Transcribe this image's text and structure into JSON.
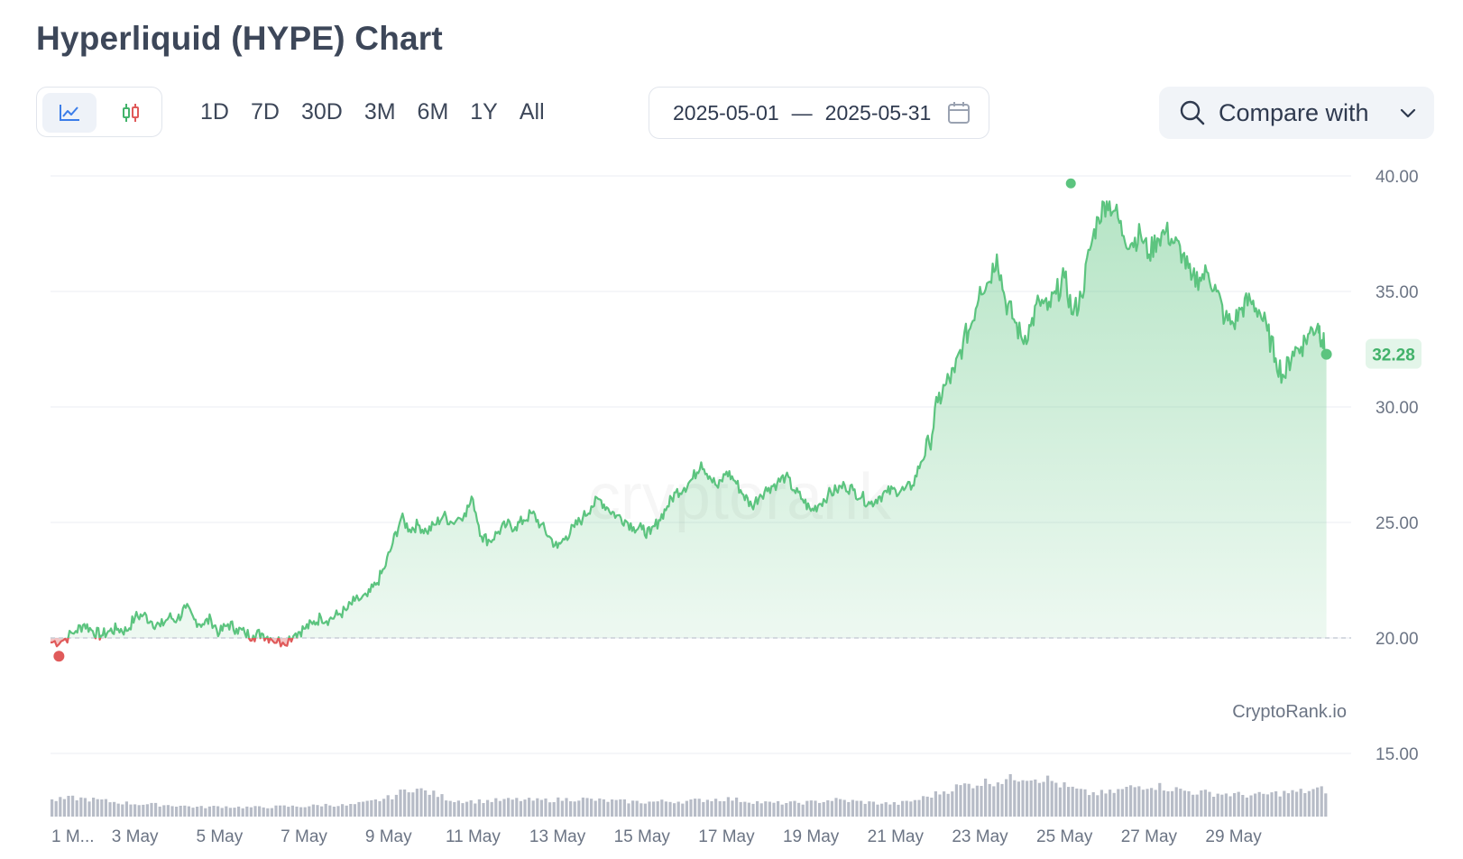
{
  "header": {
    "title": "Hyperliquid (HYPE) Chart"
  },
  "toolbar": {
    "chart_types": [
      {
        "icon": "line-chart-icon",
        "active": true
      },
      {
        "icon": "candlestick-icon",
        "active": false
      }
    ],
    "ranges": [
      "1D",
      "7D",
      "30D",
      "3M",
      "6M",
      "1Y",
      "All"
    ],
    "date_from": "2025-05-01",
    "date_separator": "—",
    "date_to": "2025-05-31",
    "calendar_icon": "calendar-icon",
    "compare_label": "Compare with",
    "compare_icon": "search-icon",
    "compare_chevron": "chevron-down-icon"
  },
  "colors": {
    "up_line": "#5cc47f",
    "down_line": "#e05a5a",
    "volume": "#b7bcc7",
    "grid": "#ebeef3",
    "current_badge_bg": "#e3f5e9",
    "current_badge_text": "#42b26a"
  },
  "chart_data": {
    "type": "area",
    "x_tick_labels": [
      "1 M...",
      "3 May",
      "5 May",
      "7 May",
      "9 May",
      "11 May",
      "13 May",
      "15 May",
      "17 May",
      "19 May",
      "21 May",
      "23 May",
      "25 May",
      "27 May",
      "29 May"
    ],
    "x_ticks_day": [
      1,
      3,
      5,
      7,
      9,
      11,
      13,
      15,
      17,
      19,
      21,
      23,
      25,
      27,
      29
    ],
    "y_ticks": [
      15,
      20,
      25,
      30,
      35,
      40
    ],
    "y_tick_labels": [
      "15.00",
      "20.00",
      "25.00",
      "30.00",
      "35.00",
      "40.00"
    ],
    "ylim": [
      15,
      40
    ],
    "xlim_day": [
      1,
      31
    ],
    "baseline": 20,
    "current_value_label": "32.28",
    "current_value": 32.28,
    "high_marker": {
      "day": 25.15,
      "value": 39.6
    },
    "low_marker": {
      "day": 1.2,
      "value": 19.6
    },
    "series": [
      {
        "points": [
          [
            1.0,
            19.8
          ],
          [
            1.3,
            19.9
          ],
          [
            1.6,
            20.3
          ],
          [
            1.8,
            20.6
          ],
          [
            2.0,
            20.3
          ],
          [
            2.2,
            20.1
          ],
          [
            2.4,
            20.3
          ],
          [
            2.6,
            20.4
          ],
          [
            2.8,
            20.3
          ],
          [
            3.0,
            20.9
          ],
          [
            3.2,
            21.0
          ],
          [
            3.4,
            20.7
          ],
          [
            3.6,
            20.5
          ],
          [
            3.8,
            20.9
          ],
          [
            4.0,
            20.8
          ],
          [
            4.2,
            21.3
          ],
          [
            4.4,
            20.8
          ],
          [
            4.6,
            20.6
          ],
          [
            4.8,
            20.8
          ],
          [
            5.0,
            20.2
          ],
          [
            5.2,
            20.6
          ],
          [
            5.4,
            20.4
          ],
          [
            5.6,
            20.2
          ],
          [
            5.8,
            20.1
          ],
          [
            6.0,
            20.2
          ],
          [
            6.2,
            20.0
          ],
          [
            6.5,
            19.8
          ],
          [
            6.8,
            20.2
          ],
          [
            7.0,
            20.4
          ],
          [
            7.2,
            20.6
          ],
          [
            7.4,
            20.9
          ],
          [
            7.6,
            20.8
          ],
          [
            7.8,
            21.0
          ],
          [
            8.0,
            21.2
          ],
          [
            8.2,
            21.6
          ],
          [
            8.5,
            21.8
          ],
          [
            8.7,
            22.3
          ],
          [
            8.9,
            23.0
          ],
          [
            9.1,
            24.1
          ],
          [
            9.3,
            25.2
          ],
          [
            9.5,
            24.7
          ],
          [
            9.7,
            24.9
          ],
          [
            9.9,
            24.6
          ],
          [
            10.1,
            24.9
          ],
          [
            10.3,
            25.3
          ],
          [
            10.5,
            25.0
          ],
          [
            10.8,
            25.4
          ],
          [
            11.0,
            26.0
          ],
          [
            11.2,
            24.4
          ],
          [
            11.4,
            24.2
          ],
          [
            11.6,
            24.6
          ],
          [
            11.8,
            24.9
          ],
          [
            12.0,
            24.8
          ],
          [
            12.2,
            25.1
          ],
          [
            12.4,
            25.4
          ],
          [
            12.6,
            24.9
          ],
          [
            12.8,
            24.4
          ],
          [
            13.0,
            23.9
          ],
          [
            13.2,
            24.4
          ],
          [
            13.4,
            24.8
          ],
          [
            13.6,
            25.2
          ],
          [
            13.8,
            25.7
          ],
          [
            14.0,
            26.0
          ],
          [
            14.2,
            25.6
          ],
          [
            14.4,
            25.3
          ],
          [
            14.6,
            25.1
          ],
          [
            14.8,
            24.8
          ],
          [
            15.0,
            24.7
          ],
          [
            15.2,
            24.5
          ],
          [
            15.4,
            25.1
          ],
          [
            15.6,
            25.7
          ],
          [
            15.8,
            26.3
          ],
          [
            16.0,
            26.5
          ],
          [
            16.2,
            26.9
          ],
          [
            16.4,
            27.6
          ],
          [
            16.6,
            27.0
          ],
          [
            16.8,
            26.5
          ],
          [
            17.0,
            27.2
          ],
          [
            17.2,
            26.8
          ],
          [
            17.4,
            26.2
          ],
          [
            17.6,
            25.7
          ],
          [
            17.8,
            26.2
          ],
          [
            18.0,
            26.5
          ],
          [
            18.2,
            26.7
          ],
          [
            18.4,
            27.0
          ],
          [
            18.6,
            26.4
          ],
          [
            18.8,
            26.0
          ],
          [
            19.0,
            25.5
          ],
          [
            19.2,
            25.8
          ],
          [
            19.4,
            26.2
          ],
          [
            19.6,
            26.4
          ],
          [
            19.8,
            26.6
          ],
          [
            20.0,
            26.4
          ],
          [
            20.2,
            26.1
          ],
          [
            20.4,
            25.8
          ],
          [
            20.6,
            26.1
          ],
          [
            20.8,
            26.3
          ],
          [
            21.0,
            26.4
          ],
          [
            21.2,
            26.4
          ],
          [
            21.4,
            26.6
          ],
          [
            21.6,
            27.6
          ],
          [
            21.8,
            28.4
          ],
          [
            22.0,
            30.2
          ],
          [
            22.2,
            31.0
          ],
          [
            22.4,
            31.5
          ],
          [
            22.6,
            32.8
          ],
          [
            22.8,
            33.6
          ],
          [
            23.0,
            35.2
          ],
          [
            23.2,
            35.4
          ],
          [
            23.4,
            36.6
          ],
          [
            23.6,
            34.6
          ],
          [
            23.8,
            33.8
          ],
          [
            24.0,
            32.9
          ],
          [
            24.2,
            33.5
          ],
          [
            24.4,
            34.6
          ],
          [
            24.6,
            34.2
          ],
          [
            24.8,
            34.9
          ],
          [
            25.0,
            35.6
          ],
          [
            25.2,
            34.0
          ],
          [
            25.4,
            34.8
          ],
          [
            25.6,
            36.8
          ],
          [
            25.8,
            38.2
          ],
          [
            26.0,
            38.9
          ],
          [
            26.2,
            38.5
          ],
          [
            26.4,
            37.4
          ],
          [
            26.6,
            37.1
          ],
          [
            26.8,
            37.5
          ],
          [
            27.0,
            36.6
          ],
          [
            27.2,
            37.3
          ],
          [
            27.4,
            37.6
          ],
          [
            27.6,
            37.1
          ],
          [
            27.8,
            36.6
          ],
          [
            28.0,
            35.5
          ],
          [
            28.2,
            35.6
          ],
          [
            28.4,
            35.8
          ],
          [
            28.6,
            35.0
          ],
          [
            28.8,
            33.8
          ],
          [
            29.0,
            33.6
          ],
          [
            29.2,
            34.3
          ],
          [
            29.4,
            34.6
          ],
          [
            29.6,
            34.2
          ],
          [
            29.8,
            33.3
          ],
          [
            30.0,
            32.1
          ],
          [
            30.2,
            31.3
          ],
          [
            30.4,
            32.4
          ],
          [
            30.6,
            32.6
          ],
          [
            30.8,
            33.2
          ],
          [
            31.0,
            33.6
          ],
          [
            31.1,
            32.9
          ],
          [
            31.2,
            32.28
          ]
        ]
      }
    ],
    "volume": {
      "points": [
        [
          1.0,
          0.38
        ],
        [
          1.5,
          0.44
        ],
        [
          2.0,
          0.4
        ],
        [
          2.5,
          0.34
        ],
        [
          3.0,
          0.3
        ],
        [
          3.5,
          0.28
        ],
        [
          4.0,
          0.26
        ],
        [
          4.5,
          0.22
        ],
        [
          5.0,
          0.24
        ],
        [
          5.5,
          0.22
        ],
        [
          6.0,
          0.22
        ],
        [
          6.5,
          0.24
        ],
        [
          7.0,
          0.24
        ],
        [
          7.5,
          0.28
        ],
        [
          8.0,
          0.26
        ],
        [
          8.5,
          0.34
        ],
        [
          9.0,
          0.45
        ],
        [
          9.5,
          0.68
        ],
        [
          10.0,
          0.55
        ],
        [
          10.5,
          0.38
        ],
        [
          11.0,
          0.36
        ],
        [
          11.5,
          0.38
        ],
        [
          12.0,
          0.4
        ],
        [
          12.5,
          0.38
        ],
        [
          13.0,
          0.4
        ],
        [
          13.5,
          0.42
        ],
        [
          14.0,
          0.38
        ],
        [
          14.5,
          0.36
        ],
        [
          15.0,
          0.34
        ],
        [
          15.5,
          0.36
        ],
        [
          16.0,
          0.36
        ],
        [
          16.5,
          0.4
        ],
        [
          17.0,
          0.42
        ],
        [
          17.5,
          0.36
        ],
        [
          18.0,
          0.32
        ],
        [
          18.5,
          0.32
        ],
        [
          19.0,
          0.34
        ],
        [
          19.5,
          0.4
        ],
        [
          20.0,
          0.36
        ],
        [
          20.5,
          0.32
        ],
        [
          21.0,
          0.3
        ],
        [
          21.5,
          0.4
        ],
        [
          22.0,
          0.56
        ],
        [
          22.5,
          0.72
        ],
        [
          23.0,
          0.8
        ],
        [
          23.5,
          0.86
        ],
        [
          24.0,
          0.96
        ],
        [
          24.5,
          0.9
        ],
        [
          25.0,
          0.7
        ],
        [
          25.5,
          0.55
        ],
        [
          26.0,
          0.55
        ],
        [
          26.5,
          0.68
        ],
        [
          27.0,
          0.75
        ],
        [
          27.5,
          0.66
        ],
        [
          28.0,
          0.58
        ],
        [
          28.5,
          0.55
        ],
        [
          29.0,
          0.52
        ],
        [
          29.5,
          0.5
        ],
        [
          30.0,
          0.55
        ],
        [
          30.5,
          0.58
        ],
        [
          31.0,
          0.64
        ],
        [
          31.2,
          0.62
        ]
      ]
    }
  },
  "watermark": {
    "source_label": "CryptoRank.io",
    "logo_text": "cryptorank"
  }
}
